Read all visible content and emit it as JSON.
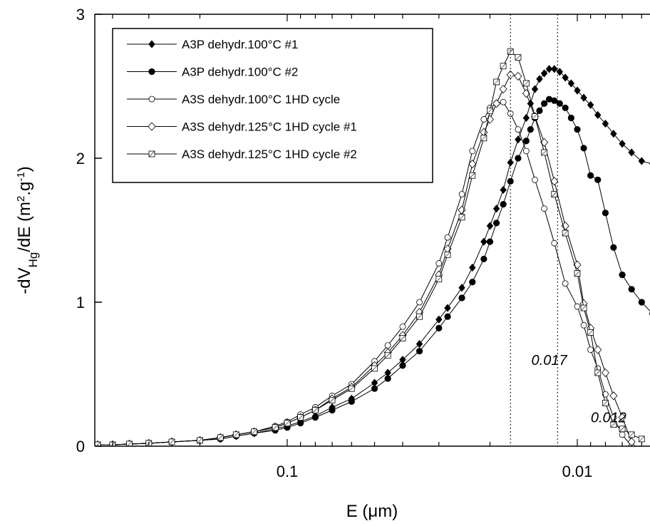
{
  "chart_data": {
    "type": "line",
    "xlabel_main": "E (",
    "xlabel_unit": "μm",
    "xlabel_close": ")",
    "ylabel": {
      "pre": "-dV",
      "sub": "Hg",
      "mid": "/dE (m",
      "sup1": "2",
      "dot": ".g",
      "sup2": "-1",
      "post": ")"
    },
    "x_scale": "log-reversed",
    "x_ticks": [
      {
        "value": 0.1,
        "label": "0.1"
      },
      {
        "value": 0.01,
        "label": "0.01"
      }
    ],
    "y_ticks": [
      {
        "value": 0,
        "label": "0"
      },
      {
        "value": 1,
        "label": "1"
      },
      {
        "value": 2,
        "label": "2"
      },
      {
        "value": 3,
        "label": "3"
      }
    ],
    "xlim": [
      0.45,
      0.0055
    ],
    "ylim": [
      0,
      3
    ],
    "grid": false,
    "legend_position": "top-left",
    "annotations": [
      {
        "text": "0.017",
        "x": 0.0125,
        "y": 0.6
      },
      {
        "text": "0.012",
        "x": 0.0078,
        "y": 0.2
      }
    ],
    "reference_lines": [
      0.017,
      0.0117
    ],
    "series": [
      {
        "name": "A3P dehydr.100°C #1",
        "marker": "diamond-filled",
        "x": [
          0.45,
          0.4,
          0.35,
          0.3,
          0.25,
          0.2,
          0.17,
          0.15,
          0.13,
          0.11,
          0.1,
          0.09,
          0.08,
          0.07,
          0.06,
          0.05,
          0.045,
          0.04,
          0.035,
          0.03,
          0.028,
          0.025,
          0.023,
          0.021,
          0.02,
          0.019,
          0.018,
          0.017,
          0.016,
          0.015,
          0.0145,
          0.014,
          0.0135,
          0.013,
          0.0125,
          0.012,
          0.0115,
          0.011,
          0.0105,
          0.01,
          0.0095,
          0.009,
          0.0085,
          0.008,
          0.0075,
          0.007,
          0.0065,
          0.006,
          0.0055
        ],
        "y": [
          0.01,
          0.01,
          0.015,
          0.02,
          0.03,
          0.04,
          0.05,
          0.07,
          0.09,
          0.12,
          0.14,
          0.17,
          0.21,
          0.27,
          0.33,
          0.44,
          0.51,
          0.6,
          0.71,
          0.88,
          0.96,
          1.1,
          1.24,
          1.42,
          1.53,
          1.65,
          1.78,
          1.97,
          2.13,
          2.28,
          2.38,
          2.48,
          2.55,
          2.59,
          2.62,
          2.62,
          2.6,
          2.56,
          2.52,
          2.47,
          2.42,
          2.37,
          2.3,
          2.24,
          2.17,
          2.1,
          2.04,
          1.98,
          1.96
        ]
      },
      {
        "name": "A3P dehydr.100°C #2",
        "marker": "circle-filled",
        "x": [
          0.45,
          0.4,
          0.35,
          0.3,
          0.25,
          0.2,
          0.17,
          0.15,
          0.13,
          0.11,
          0.1,
          0.09,
          0.08,
          0.07,
          0.06,
          0.05,
          0.045,
          0.04,
          0.035,
          0.03,
          0.028,
          0.025,
          0.023,
          0.021,
          0.02,
          0.019,
          0.018,
          0.017,
          0.016,
          0.015,
          0.0145,
          0.014,
          0.0135,
          0.013,
          0.0125,
          0.012,
          0.0115,
          0.011,
          0.0105,
          0.01,
          0.0095,
          0.009,
          0.0085,
          0.008,
          0.0075,
          0.007,
          0.0065,
          0.006,
          0.0055
        ],
        "y": [
          0.01,
          0.01,
          0.015,
          0.02,
          0.03,
          0.04,
          0.05,
          0.07,
          0.09,
          0.11,
          0.13,
          0.16,
          0.2,
          0.25,
          0.31,
          0.4,
          0.47,
          0.56,
          0.66,
          0.82,
          0.9,
          1.03,
          1.14,
          1.3,
          1.42,
          1.55,
          1.68,
          1.84,
          2.0,
          2.12,
          2.2,
          2.28,
          2.33,
          2.38,
          2.41,
          2.4,
          2.38,
          2.35,
          2.28,
          2.2,
          2.07,
          1.88,
          1.85,
          1.62,
          1.38,
          1.19,
          1.09,
          1.0,
          0.92
        ]
      },
      {
        "name": "A3S dehydr.100°C 1HD cycle",
        "marker": "circle-open",
        "x": [
          0.45,
          0.4,
          0.35,
          0.3,
          0.25,
          0.2,
          0.17,
          0.15,
          0.13,
          0.11,
          0.1,
          0.09,
          0.08,
          0.07,
          0.06,
          0.05,
          0.045,
          0.04,
          0.035,
          0.03,
          0.028,
          0.025,
          0.023,
          0.021,
          0.02,
          0.019,
          0.018,
          0.017,
          0.016,
          0.015,
          0.014,
          0.013,
          0.012,
          0.011,
          0.01,
          0.0095,
          0.009,
          0.0085,
          0.008,
          0.0075,
          0.007,
          0.0065
        ],
        "y": [
          0.01,
          0.01,
          0.015,
          0.02,
          0.03,
          0.04,
          0.06,
          0.08,
          0.1,
          0.14,
          0.17,
          0.22,
          0.27,
          0.35,
          0.43,
          0.59,
          0.7,
          0.83,
          1.0,
          1.27,
          1.45,
          1.75,
          2.05,
          2.27,
          2.35,
          2.38,
          2.39,
          2.31,
          2.2,
          2.05,
          1.85,
          1.65,
          1.41,
          1.13,
          0.97,
          0.84,
          0.67,
          0.54,
          0.36,
          0.2,
          0.08,
          0.0
        ]
      },
      {
        "name": "A3S dehydr.125°C 1HD cycle #1",
        "marker": "diamond-open",
        "x": [
          0.45,
          0.4,
          0.35,
          0.3,
          0.25,
          0.2,
          0.17,
          0.15,
          0.13,
          0.11,
          0.1,
          0.09,
          0.08,
          0.07,
          0.06,
          0.05,
          0.045,
          0.04,
          0.035,
          0.03,
          0.028,
          0.025,
          0.023,
          0.021,
          0.02,
          0.019,
          0.018,
          0.017,
          0.016,
          0.015,
          0.014,
          0.013,
          0.012,
          0.011,
          0.01,
          0.0095,
          0.009,
          0.0085,
          0.008,
          0.0075,
          0.007,
          0.0065
        ],
        "y": [
          0.01,
          0.01,
          0.015,
          0.02,
          0.03,
          0.04,
          0.06,
          0.08,
          0.1,
          0.13,
          0.16,
          0.2,
          0.25,
          0.33,
          0.41,
          0.56,
          0.65,
          0.77,
          0.93,
          1.19,
          1.37,
          1.64,
          1.96,
          2.18,
          2.27,
          2.38,
          2.48,
          2.58,
          2.57,
          2.45,
          2.29,
          2.11,
          1.84,
          1.53,
          1.26,
          0.99,
          0.82,
          0.67,
          0.51,
          0.35,
          0.2,
          0.03
        ]
      },
      {
        "name": "A3S dehydr.125°C 1HD cycle #2",
        "marker": "square-open",
        "x": [
          0.45,
          0.4,
          0.35,
          0.3,
          0.25,
          0.2,
          0.17,
          0.15,
          0.13,
          0.11,
          0.1,
          0.09,
          0.08,
          0.07,
          0.06,
          0.05,
          0.045,
          0.04,
          0.035,
          0.03,
          0.028,
          0.025,
          0.023,
          0.021,
          0.02,
          0.019,
          0.018,
          0.017,
          0.016,
          0.015,
          0.014,
          0.013,
          0.012,
          0.011,
          0.01,
          0.0095,
          0.009,
          0.0085,
          0.008,
          0.0075,
          0.007,
          0.0065,
          0.006
        ],
        "y": [
          0.01,
          0.01,
          0.015,
          0.02,
          0.03,
          0.04,
          0.06,
          0.08,
          0.1,
          0.13,
          0.16,
          0.2,
          0.25,
          0.32,
          0.4,
          0.54,
          0.63,
          0.75,
          0.9,
          1.16,
          1.33,
          1.59,
          1.88,
          2.14,
          2.33,
          2.53,
          2.64,
          2.74,
          2.7,
          2.52,
          2.29,
          2.04,
          1.75,
          1.48,
          1.2,
          0.96,
          0.79,
          0.51,
          0.3,
          0.15,
          0.12,
          0.08,
          0.05
        ]
      }
    ]
  }
}
